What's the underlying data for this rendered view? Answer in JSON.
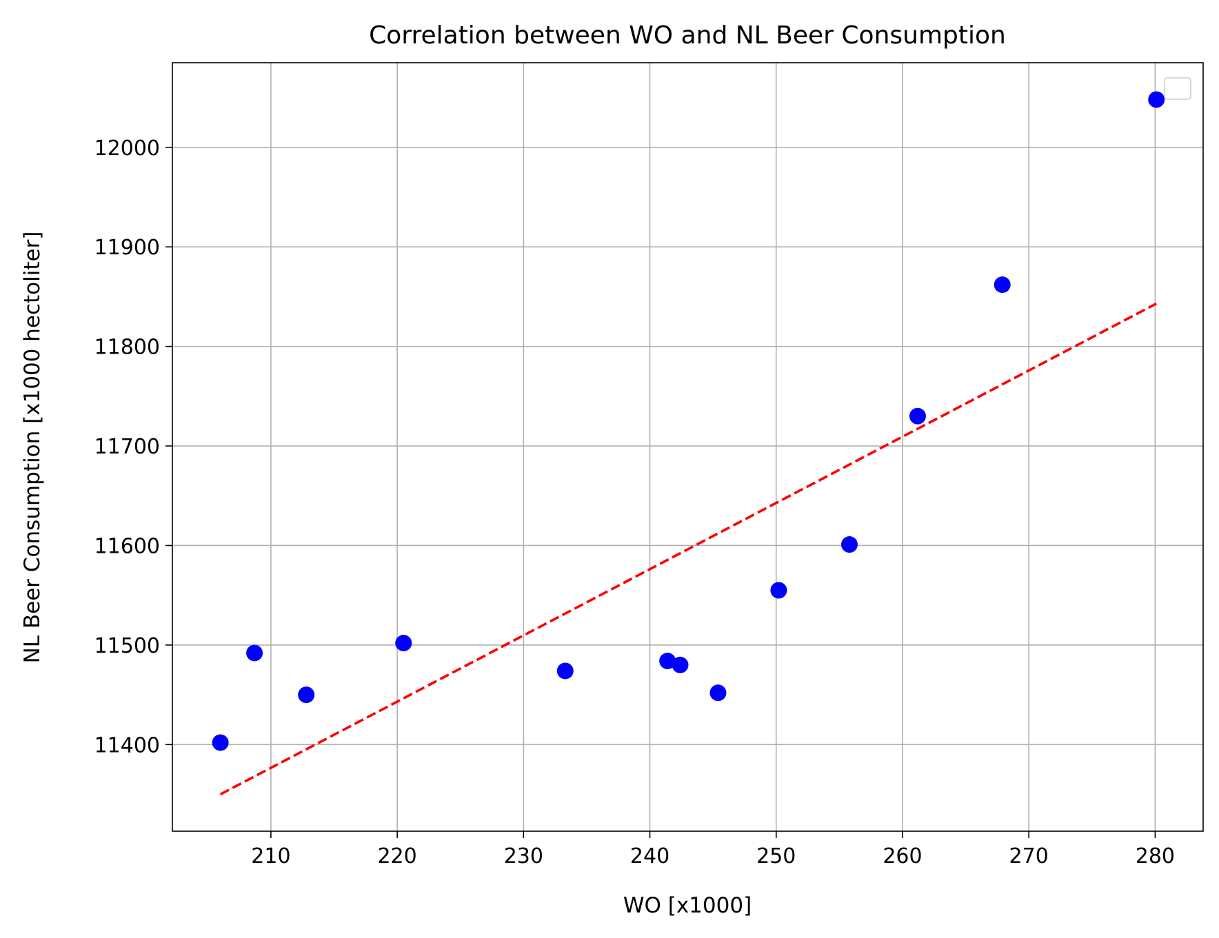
{
  "chart_data": {
    "type": "scatter",
    "title": "Correlation between WO and NL Beer Consumption",
    "xlabel": "WO [x1000]",
    "ylabel": "NL Beer Consumption [x1000 hectoliter]",
    "xlim": [
      202.2,
      283.8
    ],
    "ylim": [
      11313,
      12085
    ],
    "x_ticks": [
      210,
      220,
      230,
      240,
      250,
      260,
      270,
      280
    ],
    "y_ticks": [
      11400,
      11500,
      11600,
      11700,
      11800,
      11900,
      12000
    ],
    "grid": true,
    "legend": "top-right (empty)",
    "series": [
      {
        "type": "scatter",
        "color": "#0000ff",
        "x": [
          206.0,
          208.7,
          212.8,
          220.5,
          233.3,
          241.4,
          242.4,
          245.4,
          250.2,
          255.8,
          261.2,
          267.9,
          280.1
        ],
        "y": [
          11402,
          11492,
          11450,
          11502,
          11474,
          11484,
          11480,
          11452,
          11555,
          11601,
          11730,
          11862,
          12048
        ]
      },
      {
        "type": "line",
        "style": "dashed",
        "color": "#ff0000",
        "x": [
          206.0,
          280.1
        ],
        "y": [
          11350,
          11843
        ]
      }
    ]
  }
}
